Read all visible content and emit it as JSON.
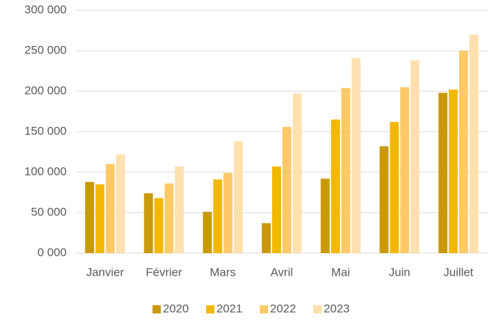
{
  "chart_data": {
    "type": "bar",
    "categories": [
      "Janvier",
      "Février",
      "Mars",
      "Avril",
      "Mai",
      "Juin",
      "Juillet"
    ],
    "series": [
      {
        "name": "2020",
        "color": "#c9990a",
        "values": [
          88000,
          74000,
          51000,
          37000,
          92000,
          132000,
          198000
        ]
      },
      {
        "name": "2021",
        "color": "#f2b800",
        "values": [
          85000,
          68000,
          91000,
          107000,
          165000,
          162000,
          202000
        ]
      },
      {
        "name": "2022",
        "color": "#ffc967",
        "values": [
          110000,
          86000,
          99000,
          156000,
          204000,
          205000,
          250000
        ]
      },
      {
        "name": "2023",
        "color": "#ffe0ae",
        "values": [
          122000,
          107000,
          138000,
          197000,
          241000,
          238000,
          270000
        ]
      }
    ],
    "ylim": [
      0,
      300000
    ],
    "yticks": [
      {
        "value": 0,
        "label": "0 000"
      },
      {
        "value": 50000,
        "label": "50 000"
      },
      {
        "value": 100000,
        "label": "100 000"
      },
      {
        "value": 150000,
        "label": "150 000"
      },
      {
        "value": 200000,
        "label": "200 000"
      },
      {
        "value": 250000,
        "label": "250 000"
      },
      {
        "value": 300000,
        "label": "300 000"
      }
    ],
    "grid": true,
    "legend": "bottom"
  }
}
